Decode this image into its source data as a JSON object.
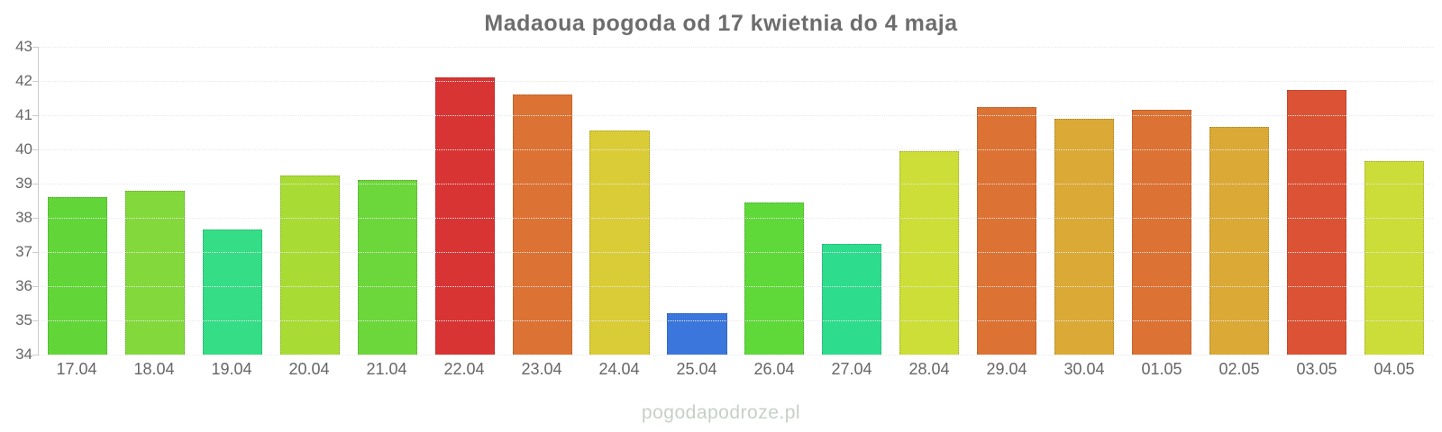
{
  "title": "Madaoua pogoda od 17 kwietnia do 4 maja",
  "watermark": "pogodapodroze.pl",
  "colors": {
    "title_text": "#6d6d6d",
    "axis_text": "#666666",
    "axis_line": "#cccccc",
    "gridline": "#e9e9e9",
    "watermark_text": "#c7cfc7"
  },
  "chart_data": {
    "type": "bar",
    "title": "Madaoua pogoda od 17 kwietnia do 4 maja",
    "xlabel": "",
    "ylabel": "",
    "ylim": [
      34,
      43
    ],
    "yticks": [
      34,
      35,
      36,
      37,
      38,
      39,
      40,
      41,
      42,
      43
    ],
    "grid": true,
    "legend": false,
    "categories": [
      "17.04",
      "18.04",
      "19.04",
      "20.04",
      "21.04",
      "22.04",
      "23.04",
      "24.04",
      "25.04",
      "26.04",
      "27.04",
      "28.04",
      "29.04",
      "30.04",
      "01.05",
      "02.05",
      "03.05",
      "04.05"
    ],
    "values": [
      38.6,
      38.8,
      37.65,
      39.25,
      39.1,
      42.1,
      41.6,
      40.55,
      35.2,
      38.45,
      37.25,
      39.95,
      41.25,
      40.9,
      41.15,
      40.65,
      41.75,
      39.65
    ],
    "bar_colors": [
      "#62d639",
      "#83d93c",
      "#35dd87",
      "#a8dc35",
      "#6cd73a",
      "#d93434",
      "#dc7233",
      "#d9cc36",
      "#3b76dc",
      "#5fd93a",
      "#2edc8e",
      "#ccde37",
      "#dc7233",
      "#dba936",
      "#dc7233",
      "#dba936",
      "#dc5235",
      "#ccdc38"
    ]
  }
}
